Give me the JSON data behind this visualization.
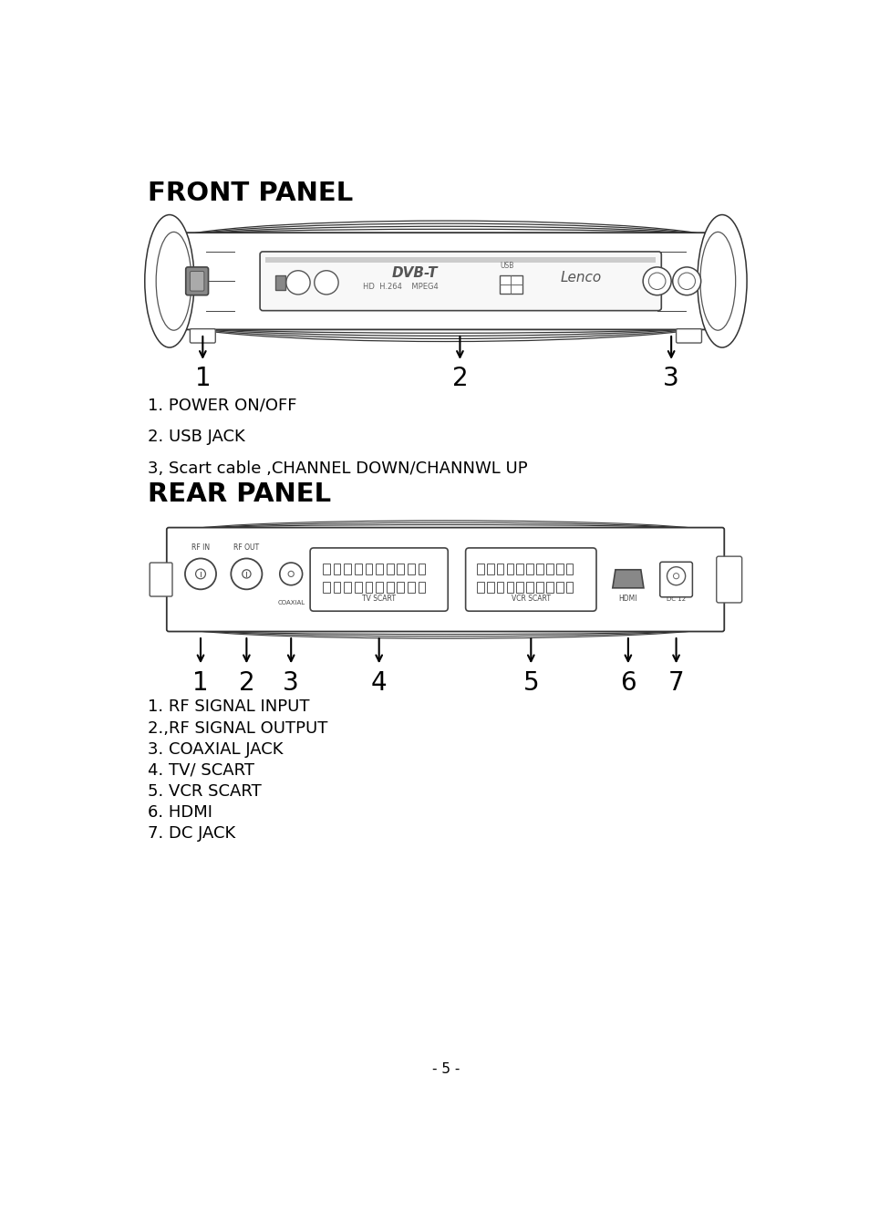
{
  "bg_color": "#ffffff",
  "text_color": "#000000",
  "front_panel_title": "FRONT PANEL",
  "rear_panel_title": "REAR PANEL",
  "front_labels": [
    "1. POWER ON/OFF",
    "",
    "2. USB JACK",
    "",
    "3, Scart cable ,CHANNEL DOWN/CHANNWL UP"
  ],
  "rear_labels": [
    "1. RF SIGNAL INPUT",
    "2.,RF SIGNAL OUTPUT",
    "3. COAXIAL JACK",
    "4. TV/ SCART",
    "5. VCR SCART",
    "6. HDMI",
    "7. DC JACK"
  ],
  "page_number": "- 5 -",
  "title_fontsize": 21,
  "label_fontsize": 13,
  "number_fontsize": 20
}
